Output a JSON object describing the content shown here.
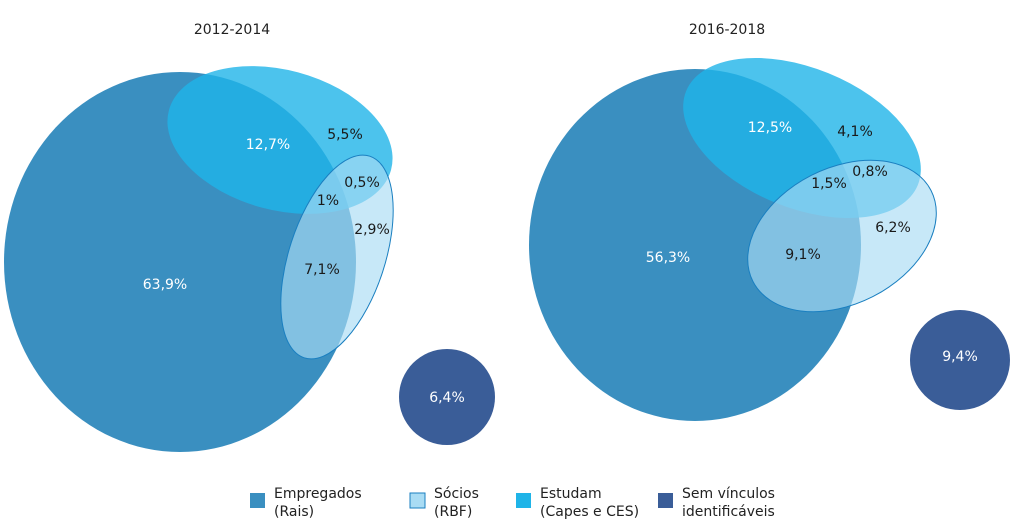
{
  "panels": [
    {
      "title": "2012-2014",
      "regions": [
        "63,9%",
        "12,7%",
        "5,5%",
        "0,5%",
        "1%",
        "2,9%",
        "7,1%",
        "6,4%"
      ]
    },
    {
      "title": "2016-2018",
      "regions": [
        "56,3%",
        "12,5%",
        "4,1%",
        "0,8%",
        "1,5%",
        "9,1%",
        "6,2%",
        "9,4%"
      ]
    }
  ],
  "legend": [
    {
      "lines": [
        "Empregados",
        "(Rais)"
      ],
      "color": "#3a8fc0"
    },
    {
      "lines": [
        "Sócios",
        "(RBF)"
      ],
      "color": "#a9dcf4"
    },
    {
      "lines": [
        "Estudam",
        "(Capes e CES)"
      ],
      "color": "#1fb4e8"
    },
    {
      "lines": [
        "Sem vínculos",
        "identificáveis"
      ],
      "color": "#3a5d98"
    }
  ]
}
